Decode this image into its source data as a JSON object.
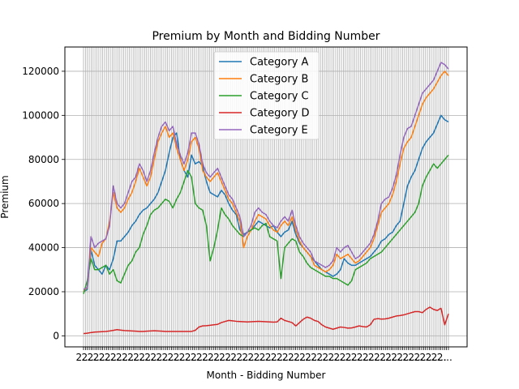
{
  "chart_data": {
    "type": "line",
    "title": "Premium by Month and Bidding Number",
    "xlabel": "Month - Bidding Number",
    "ylabel": "Premium",
    "x_tick_count": 192,
    "x_tick_text": "2...",
    "ylim": [
      -5000,
      131000
    ],
    "yticks": [
      0,
      20000,
      40000,
      60000,
      80000,
      100000,
      120000
    ],
    "ytick_labels": [
      "0",
      "20000",
      "40000",
      "60000",
      "80000",
      "100000",
      "120000"
    ],
    "grid": true,
    "legend_position": "top-center",
    "series": [
      {
        "name": "Category A",
        "color": "#1f77b4",
        "values": [
          20000,
          21000,
          39000,
          32000,
          30000,
          28000,
          32000,
          30000,
          35000,
          43000,
          43000,
          45000,
          47000,
          50000,
          52000,
          55000,
          57000,
          58000,
          60000,
          62000,
          65000,
          70000,
          75000,
          83000,
          90000,
          92000,
          80000,
          75000,
          72000,
          82000,
          78000,
          79000,
          77000,
          70000,
          65000,
          64000,
          63000,
          66000,
          64000,
          60000,
          57000,
          55000,
          48000,
          46000,
          47000,
          48000,
          50000,
          52000,
          51000,
          50000,
          49000,
          50000,
          47000,
          45000,
          47000,
          48000,
          52000,
          46000,
          42000,
          40000,
          38000,
          36000,
          34000,
          32000,
          30000,
          29000,
          28000,
          27000,
          28000,
          30000,
          35000,
          33000,
          32000,
          32000,
          33000,
          34000,
          35000,
          36000,
          38000,
          40000,
          43000,
          44000,
          46000,
          47000,
          50000,
          52000,
          60000,
          68000,
          72000,
          75000,
          80000,
          85000,
          88000,
          90000,
          92000,
          96000,
          100000,
          98000,
          97000
        ]
      },
      {
        "name": "Category B",
        "color": "#ff7f0e",
        "values": [
          20000,
          22000,
          40000,
          38000,
          36000,
          42000,
          44000,
          52000,
          65000,
          58000,
          56000,
          58000,
          62000,
          65000,
          70000,
          76000,
          72000,
          68000,
          72000,
          80000,
          88000,
          92000,
          95000,
          90000,
          92000,
          85000,
          80000,
          75000,
          80000,
          88000,
          90000,
          85000,
          75000,
          72000,
          70000,
          72000,
          74000,
          70000,
          66000,
          62000,
          60000,
          56000,
          52000,
          40000,
          45000,
          48000,
          52000,
          55000,
          54000,
          53000,
          50000,
          48000,
          47000,
          50000,
          52000,
          50000,
          54000,
          48000,
          43000,
          40000,
          38000,
          36000,
          32000,
          31000,
          30000,
          29000,
          30000,
          32000,
          37000,
          35000,
          36000,
          37000,
          35000,
          33000,
          34000,
          36000,
          38000,
          40000,
          44000,
          50000,
          56000,
          58000,
          60000,
          64000,
          70000,
          78000,
          85000,
          88000,
          90000,
          95000,
          100000,
          105000,
          108000,
          110000,
          112000,
          115000,
          118000,
          120000,
          118000
        ]
      },
      {
        "name": "Category C",
        "color": "#2ca02c",
        "values": [
          19000,
          25000,
          35000,
          30000,
          30000,
          31000,
          32000,
          28000,
          30000,
          25000,
          24000,
          28000,
          32000,
          34000,
          38000,
          40000,
          46000,
          50000,
          55000,
          57000,
          58000,
          60000,
          62000,
          61000,
          58000,
          62000,
          65000,
          70000,
          75000,
          72000,
          60000,
          58000,
          57000,
          50000,
          34000,
          40000,
          48000,
          58000,
          55000,
          53000,
          50000,
          48000,
          46000,
          45000,
          47000,
          48000,
          49000,
          48000,
          50000,
          51000,
          45000,
          44000,
          43000,
          26000,
          40000,
          42000,
          44000,
          43000,
          38000,
          36000,
          33000,
          31000,
          30000,
          29000,
          28000,
          27000,
          27000,
          26000,
          26000,
          25000,
          24000,
          23000,
          25000,
          30000,
          31000,
          32000,
          33000,
          35000,
          36000,
          37000,
          38000,
          40000,
          42000,
          44000,
          46000,
          48000,
          50000,
          52000,
          54000,
          56000,
          60000,
          68000,
          72000,
          75000,
          78000,
          76000,
          78000,
          80000,
          82000
        ]
      },
      {
        "name": "Category D",
        "color": "#d62728",
        "values": [
          1000,
          1200,
          1500,
          1700,
          1800,
          1900,
          2000,
          2200,
          2500,
          2800,
          2600,
          2400,
          2300,
          2200,
          2100,
          2000,
          2000,
          2100,
          2200,
          2300,
          2200,
          2100,
          2000,
          2000,
          2000,
          2000,
          2000,
          2000,
          2000,
          2000,
          2500,
          4000,
          4500,
          4600,
          4800,
          5000,
          5200,
          6000,
          6500,
          7000,
          6800,
          6600,
          6500,
          6400,
          6300,
          6400,
          6500,
          6600,
          6500,
          6400,
          6300,
          6200,
          6300,
          8000,
          7000,
          6500,
          6000,
          4500,
          6000,
          7500,
          8500,
          8000,
          7000,
          6500,
          5000,
          4000,
          3500,
          3000,
          3500,
          4000,
          3800,
          3500,
          3600,
          4000,
          4500,
          4200,
          4000,
          5000,
          7500,
          7800,
          7600,
          7700,
          8000,
          8500,
          9000,
          9200,
          9500,
          10000,
          10500,
          11000,
          11000,
          10500,
          12000,
          13000,
          12000,
          11500,
          12500,
          5000,
          10000
        ]
      },
      {
        "name": "Category E",
        "color": "#9467bd",
        "values": [
          21000,
          22000,
          45000,
          40000,
          42000,
          43000,
          44000,
          50000,
          68000,
          60000,
          58000,
          60000,
          65000,
          70000,
          72000,
          78000,
          75000,
          70000,
          75000,
          83000,
          90000,
          95000,
          97000,
          93000,
          95000,
          87000,
          82000,
          78000,
          83000,
          92000,
          92000,
          87000,
          78000,
          74000,
          72000,
          74000,
          76000,
          72000,
          68000,
          64000,
          62000,
          58000,
          54000,
          45000,
          47000,
          50000,
          56000,
          58000,
          56000,
          55000,
          52000,
          50000,
          49000,
          52000,
          54000,
          52000,
          57000,
          50000,
          45000,
          42000,
          40000,
          38000,
          34000,
          33000,
          32000,
          31000,
          32000,
          34000,
          40000,
          38000,
          40000,
          41000,
          38000,
          35000,
          36000,
          38000,
          40000,
          42000,
          46000,
          52000,
          60000,
          62000,
          63000,
          67000,
          73000,
          82000,
          90000,
          94000,
          95000,
          100000,
          105000,
          110000,
          112000,
          114000,
          116000,
          120000,
          124000,
          123000,
          121000
        ]
      }
    ]
  }
}
